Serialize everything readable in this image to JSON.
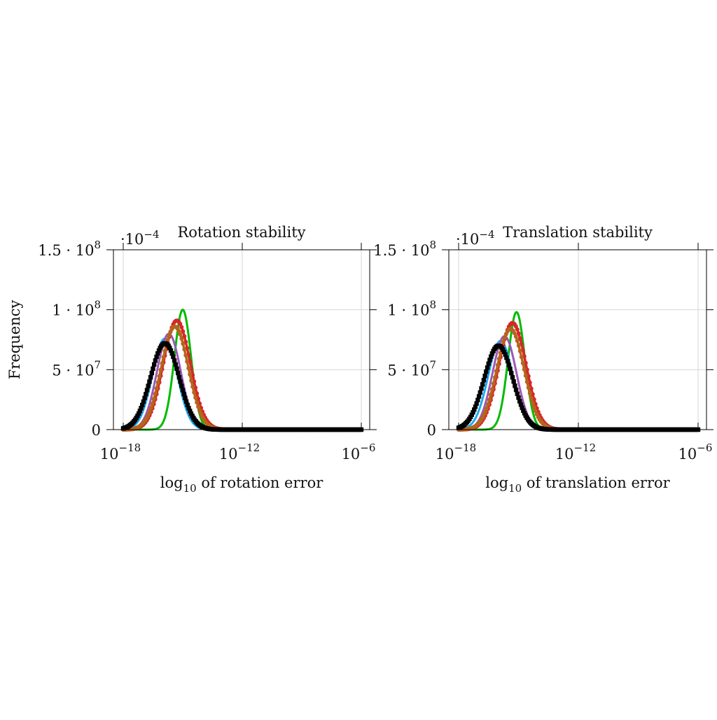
{
  "chart_data": [
    {
      "type": "line",
      "title": "Rotation stability",
      "xlabel_prefix": "log",
      "xlabel_sub": "10",
      "xlabel_suffix": " of rotation error",
      "ylabel": "Frequency",
      "x_scale": "log",
      "xlim": [
        1e-18,
        1e-06
      ],
      "ylim": [
        0,
        150000000
      ],
      "grid": true,
      "legend": "none",
      "corner_note": {
        "base": "·10",
        "exp": "−4"
      },
      "xticks": [
        {
          "value": -18,
          "base": "10",
          "exp": "−18"
        },
        {
          "value": -12,
          "base": "10",
          "exp": "−12"
        },
        {
          "value": -6,
          "base": "10",
          "exp": "−6"
        }
      ],
      "yticks": [
        {
          "value": 0,
          "base": "0",
          "exp": ""
        },
        {
          "value": 50000000,
          "base": "5 · 10",
          "exp": "7"
        },
        {
          "value": 100000000,
          "base": "1 · 10",
          "exp": "8"
        },
        {
          "value": 150000000,
          "base": "1.5 · 10",
          "exp": "8"
        }
      ],
      "series": [
        {
          "color": "#00bb00",
          "marker": "none",
          "peak_log10": -15.0,
          "peak": 100000000,
          "width": 0.42
        },
        {
          "color": "#1eaaf1",
          "marker": "none",
          "peak_log10": -15.9,
          "peak": 76000000,
          "width": 0.62
        },
        {
          "color": "#9b59b6",
          "marker": "none",
          "peak_log10": -15.7,
          "peak": 80000000,
          "width": 0.6
        },
        {
          "color": "#d62728",
          "marker": "dot",
          "peak_log10": -15.3,
          "peak": 91000000,
          "width": 0.68
        },
        {
          "color": "#b5651d",
          "marker": "dot",
          "peak_log10": -15.4,
          "peak": 86000000,
          "width": 0.68
        },
        {
          "color": "#000000",
          "marker": "square",
          "peak_log10": -15.9,
          "peak": 72000000,
          "width": 0.72
        }
      ]
    },
    {
      "type": "line",
      "title": "Translation stability",
      "xlabel_prefix": "log",
      "xlabel_sub": "10",
      "xlabel_suffix": " of translation error",
      "ylabel": "",
      "x_scale": "log",
      "xlim": [
        1e-18,
        1e-06
      ],
      "ylim": [
        0,
        150000000
      ],
      "grid": true,
      "legend": "none",
      "corner_note": {
        "base": "·10",
        "exp": "−4"
      },
      "xticks": [
        {
          "value": -18,
          "base": "10",
          "exp": "−18"
        },
        {
          "value": -12,
          "base": "10",
          "exp": "−12"
        },
        {
          "value": -6,
          "base": "10",
          "exp": "−6"
        }
      ],
      "yticks": [
        {
          "value": 0,
          "base": "0",
          "exp": ""
        },
        {
          "value": 50000000,
          "base": "5 · 10",
          "exp": "7"
        },
        {
          "value": 100000000,
          "base": "1 · 10",
          "exp": "8"
        },
        {
          "value": 150000000,
          "base": "1.5 · 10",
          "exp": "8"
        }
      ],
      "series": [
        {
          "color": "#00bb00",
          "marker": "none",
          "peak_log10": -15.1,
          "peak": 98000000,
          "width": 0.42
        },
        {
          "color": "#1eaaf1",
          "marker": "none",
          "peak_log10": -15.9,
          "peak": 74000000,
          "width": 0.62
        },
        {
          "color": "#9b59b6",
          "marker": "none",
          "peak_log10": -15.7,
          "peak": 78000000,
          "width": 0.6
        },
        {
          "color": "#d62728",
          "marker": "dot",
          "peak_log10": -15.3,
          "peak": 89000000,
          "width": 0.68
        },
        {
          "color": "#b5651d",
          "marker": "dot",
          "peak_log10": -15.4,
          "peak": 84000000,
          "width": 0.68
        },
        {
          "color": "#000000",
          "marker": "square",
          "peak_log10": -16.0,
          "peak": 70000000,
          "width": 0.72
        }
      ]
    }
  ]
}
